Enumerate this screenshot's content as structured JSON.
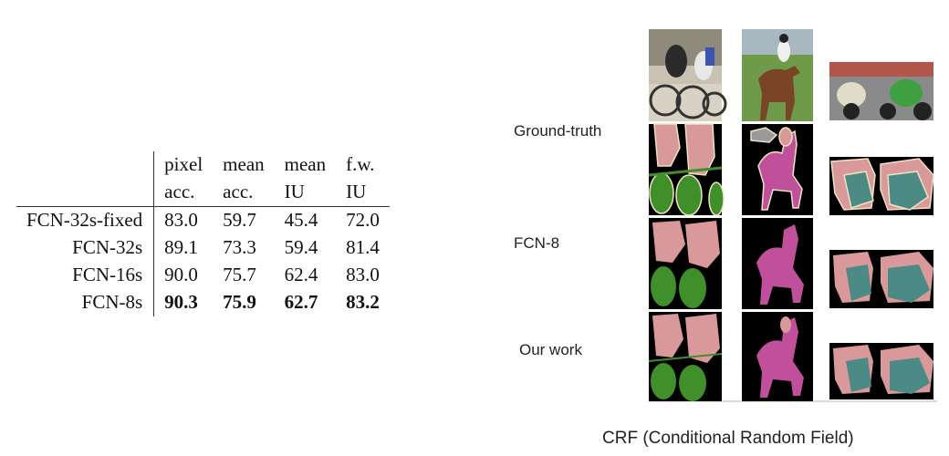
{
  "table": {
    "headers_row1": [
      "",
      "pixel",
      "mean",
      "mean",
      "f.w."
    ],
    "headers_row2": [
      "",
      "acc.",
      "acc.",
      "IU",
      "IU"
    ],
    "rows": [
      {
        "name": "FCN-32s-fixed",
        "values": [
          "83.0",
          "59.7",
          "45.4",
          "72.0"
        ]
      },
      {
        "name": "FCN-32s",
        "values": [
          "89.1",
          "73.3",
          "59.4",
          "81.4"
        ]
      },
      {
        "name": "FCN-16s",
        "values": [
          "90.0",
          "75.7",
          "62.4",
          "83.0"
        ]
      },
      {
        "name": "FCN-8s",
        "values": [
          "90.3",
          "75.9",
          "62.7",
          "83.2"
        ]
      }
    ]
  },
  "figure": {
    "row_labels": [
      "Ground-truth",
      "FCN-8",
      "Our work"
    ],
    "caption": "CRF (Conditional Random Field)",
    "colors": {
      "person": "#d9999a",
      "bicycle": "#3f8f2a",
      "horse": "#c0509c",
      "motorbike": "#4c8a86",
      "background": "#000000",
      "border": "#efe3c2"
    }
  }
}
